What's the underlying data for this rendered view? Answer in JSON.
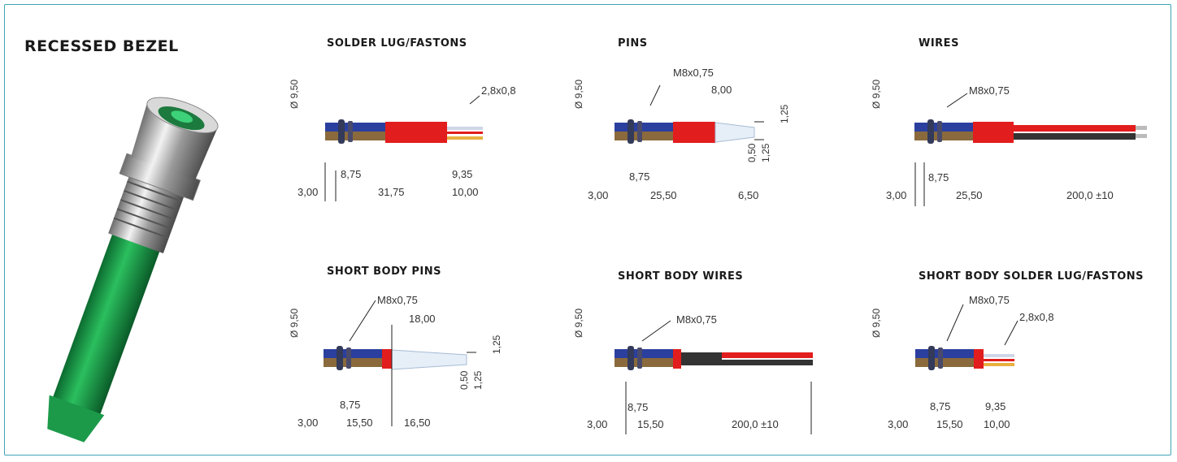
{
  "main_title": "RECESSED BEZEL",
  "variants": [
    {
      "title": "SOLDER LUG/FASTONS",
      "thread": "",
      "terminal": "2,8x0,8",
      "dims": {
        "d1": "8,75",
        "d2": "9,35",
        "a": "3,00",
        "b": "31,75",
        "c": "10,00",
        "dia": "Ø 9,50"
      }
    },
    {
      "title": "PINS",
      "thread": "M8x0,75",
      "terminal": "8,00",
      "dims": {
        "d1": "8,75",
        "a": "3,00",
        "b": "25,50",
        "c": "6,50",
        "p1": "1,25",
        "p2": "0,50",
        "p3": "1,25",
        "dia": "Ø 9,50"
      }
    },
    {
      "title": "WIRES",
      "thread": "M8x0,75",
      "dims": {
        "d1": "8,75",
        "a": "3,00",
        "b": "25,50",
        "c": "200,0 ±10",
        "dia": "Ø 9,50"
      }
    },
    {
      "title": "SHORT BODY PINS",
      "thread": "M8x0,75",
      "terminal": "18,00",
      "dims": {
        "d1": "8,75",
        "a": "3,00",
        "b": "15,50",
        "c": "16,50",
        "p1": "1,25",
        "p2": "0,50",
        "p3": "1,25",
        "dia": "Ø 9,50"
      }
    },
    {
      "title": "SHORT BODY WIRES",
      "thread": "M8x0,75",
      "dims": {
        "d1": "8,75",
        "a": "3,00",
        "b": "15,50",
        "c": "200,0 ±10",
        "dia": "Ø 9,50"
      }
    },
    {
      "title": "SHORT BODY SOLDER LUG/FASTONS",
      "thread": "M8x0,75",
      "terminal": "2,8x0,8",
      "dims": {
        "d1": "8,75",
        "d2": "9,35",
        "a": "3,00",
        "b": "15,50",
        "c": "10,00",
        "dia": "Ø 9,50"
      }
    }
  ],
  "colors": {
    "frame": "#3fa3b8",
    "bezel_blue": "#2b3f9e",
    "body_brown": "#8a6a3c",
    "sleeve_red": "#e21d1d",
    "wire_black": "#333333",
    "led_green": "#1c9a4a"
  }
}
